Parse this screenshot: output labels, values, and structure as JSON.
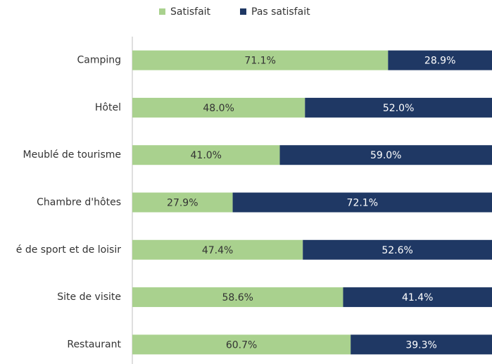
{
  "chart_data": {
    "type": "bar",
    "orientation": "horizontal",
    "stacked": true,
    "categories": [
      "Camping",
      "Hôtel",
      "Meublé de tourisme",
      "Chambre d'hôtes",
      "é de sport et de loisir",
      "Site de visite",
      "Restaurant"
    ],
    "xlim": [
      0,
      100
    ],
    "series": [
      {
        "name": "Satisfait",
        "color": "#a9d18e",
        "values": [
          71.1,
          48.0,
          41.0,
          27.9,
          47.4,
          58.6,
          60.7
        ],
        "value_labels": [
          "71.1%",
          "48.0%",
          "41.0%",
          "27.9%",
          "47.4%",
          "58.6%",
          "60.7%"
        ]
      },
      {
        "name": "Pas satisfait",
        "color": "#1f3864",
        "values": [
          28.9,
          52.0,
          59.0,
          72.1,
          52.6,
          41.4,
          39.3
        ],
        "value_labels": [
          "28.9%",
          "52.0%",
          "59.0%",
          "72.1%",
          "52.6%",
          "41.4%",
          "39.3%"
        ]
      }
    ]
  }
}
